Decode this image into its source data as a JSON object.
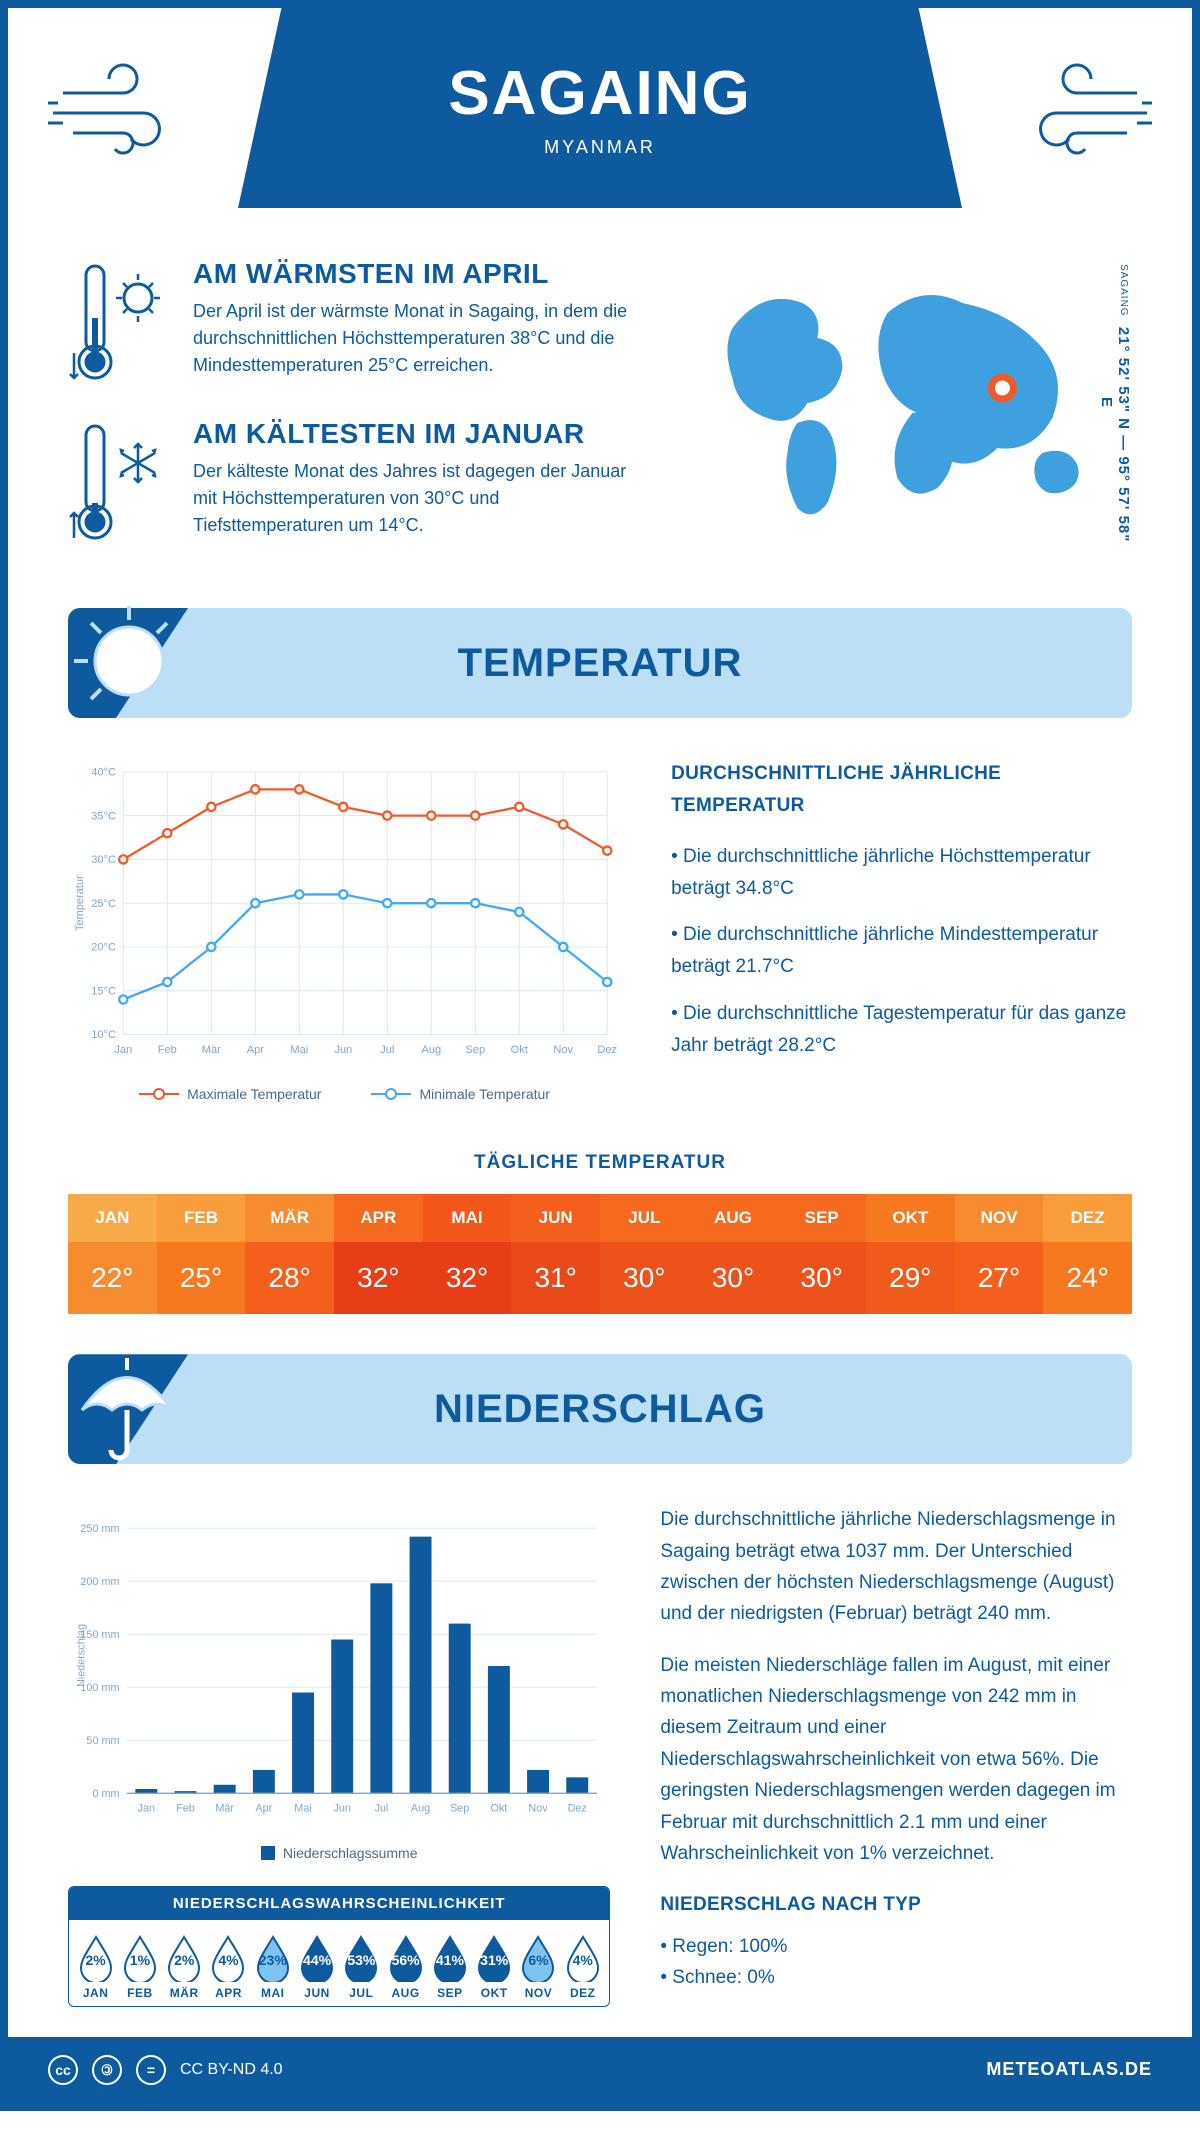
{
  "header": {
    "city": "SAGAING",
    "country": "MYANMAR"
  },
  "coords": {
    "line": "21° 52' 53\" N — 95° 57' 58\" E",
    "label": "SAGAING"
  },
  "warmest": {
    "title": "AM WÄRMSTEN IM APRIL",
    "text": "Der April ist der wärmste Monat in Sagaing, in dem die durchschnittlichen Höchsttemperaturen 38°C und die Mindesttemperaturen 25°C erreichen."
  },
  "coldest": {
    "title": "AM KÄLTESTEN IM JANUAR",
    "text": "Der kälteste Monat des Jahres ist dagegen der Januar mit Höchsttemperaturen von 30°C und Tiefsttemperaturen um 14°C."
  },
  "tempSection": {
    "banner": "TEMPERATUR",
    "infoTitle": "DURCHSCHNITTLICHE JÄHRLICHE TEMPERATUR",
    "point1": "• Die durchschnittliche jährliche Höchsttemperatur beträgt 34.8°C",
    "point2": "• Die durchschnittliche jährliche Mindesttemperatur beträgt 21.7°C",
    "point3": "• Die durchschnittliche Tagestemperatur für das ganze Jahr beträgt 28.2°C",
    "chart": {
      "months": [
        "Jan",
        "Feb",
        "Mär",
        "Apr",
        "Mai",
        "Jun",
        "Jul",
        "Aug",
        "Sep",
        "Okt",
        "Nov",
        "Dez"
      ],
      "max": [
        30,
        33,
        36,
        38,
        38,
        36,
        35,
        35,
        35,
        36,
        34,
        31
      ],
      "min": [
        14,
        16,
        20,
        25,
        26,
        26,
        25,
        25,
        25,
        24,
        20,
        16
      ],
      "maxColor": "#f05a28",
      "minColor": "#3fa9f5",
      "gridColor": "#d6e8f5",
      "axisColor": "#7fa8c9",
      "yTicks": [
        10,
        15,
        20,
        25,
        30,
        35,
        40
      ],
      "yLabel": "Temperatur",
      "legendMax": "Maximale Temperatur",
      "legendMin": "Minimale Temperatur"
    }
  },
  "dailyTemp": {
    "title": "TÄGLICHE TEMPERATUR",
    "months": [
      "JAN",
      "FEB",
      "MÄR",
      "APR",
      "MAI",
      "JUN",
      "JUL",
      "AUG",
      "SEP",
      "OKT",
      "NOV",
      "DEZ"
    ],
    "values": [
      "22°",
      "25°",
      "28°",
      "32°",
      "32°",
      "31°",
      "30°",
      "30°",
      "30°",
      "29°",
      "27°",
      "24°"
    ],
    "headerColors": [
      "#f8a94a",
      "#f89c3c",
      "#f78b30",
      "#f56a1e",
      "#f4571a",
      "#f4601c",
      "#f56a1e",
      "#f56a1e",
      "#f56a1e",
      "#f6781f",
      "#f78b30",
      "#f89c3c"
    ],
    "valueColors": [
      "#f78b30",
      "#f6781f",
      "#f4601c",
      "#e83e18",
      "#e83e18",
      "#ea4919",
      "#ec521a",
      "#ec521a",
      "#ec521a",
      "#f05a1b",
      "#f4601c",
      "#f6781f"
    ]
  },
  "precipSection": {
    "banner": "NIEDERSCHLAG",
    "chart": {
      "months": [
        "Jan",
        "Feb",
        "Mär",
        "Apr",
        "Mai",
        "Jun",
        "Jul",
        "Aug",
        "Sep",
        "Okt",
        "Nov",
        "Dez"
      ],
      "values": [
        4,
        2,
        8,
        22,
        95,
        145,
        198,
        242,
        160,
        120,
        22,
        15
      ],
      "yTicks": [
        0,
        50,
        100,
        150,
        200,
        250
      ],
      "yMax": 260,
      "barColor": "#0d5a9e",
      "gridColor": "#d6e8f5",
      "axisColor": "#7fa8c9",
      "yLabel": "Niederschlag",
      "legend": "Niederschlagssumme"
    },
    "para1": "Die durchschnittliche jährliche Niederschlagsmenge in Sagaing beträgt etwa 1037 mm. Der Unterschied zwischen der höchsten Niederschlagsmenge (August) und der niedrigsten (Februar) beträgt 240 mm.",
    "para2": "Die meisten Niederschläge fallen im August, mit einer monatlichen Niederschlagsmenge von 242 mm in diesem Zeitraum und einer Niederschlagswahrscheinlichkeit von etwa 56%. Die geringsten Niederschlagsmengen werden dagegen im Februar mit durchschnittlich 2.1 mm und einer Wahrscheinlichkeit von 1% verzeichnet.",
    "typeTitle": "NIEDERSCHLAG NACH TYP",
    "type1": "• Regen: 100%",
    "type2": "• Schnee: 0%",
    "probTitle": "NIEDERSCHLAGSWAHRSCHEINLICHKEIT",
    "prob": {
      "months": [
        "JAN",
        "FEB",
        "MÄR",
        "APR",
        "MAI",
        "JUN",
        "JUL",
        "AUG",
        "SEP",
        "OKT",
        "NOV",
        "DEZ"
      ],
      "values": [
        "2%",
        "1%",
        "2%",
        "4%",
        "23%",
        "44%",
        "53%",
        "56%",
        "41%",
        "31%",
        "6%",
        "4%"
      ],
      "levels": [
        0,
        0,
        0,
        0,
        1,
        2,
        2,
        2,
        2,
        2,
        1,
        0
      ]
    }
  },
  "footer": {
    "license": "CC BY-ND 4.0",
    "site": "METEOATLAS.DE"
  },
  "colors": {
    "primary": "#0d5a9e",
    "lightBlue": "#bcdff5",
    "midBlue": "#5aa9de",
    "accent": "#f05a28"
  }
}
